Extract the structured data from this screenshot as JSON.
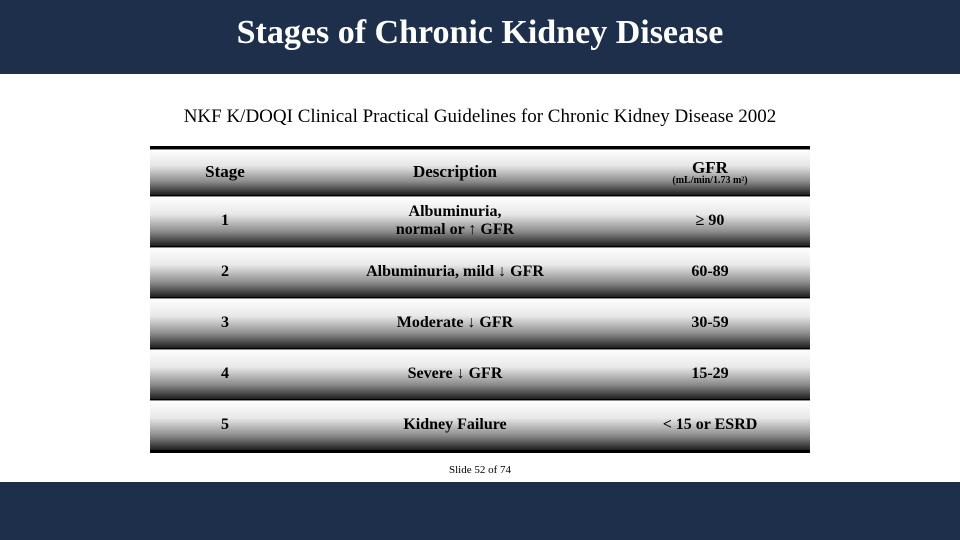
{
  "colors": {
    "band": "#1d2f4b",
    "text": "#000000",
    "title": "#ffffff",
    "row_gradient": [
      "#ffffff",
      "#e8e8e8",
      "#8c8c8c",
      "#1c1c1c"
    ]
  },
  "title": "Stages of Chronic Kidney Disease",
  "subtitle": "NKF K/DOQI Clinical Practical Guidelines for Chronic Kidney Disease 2002",
  "table": {
    "columns": {
      "stage": "Stage",
      "description": "Description",
      "gfr": "GFR",
      "gfr_sub": "(mL/min/1.73 m²)"
    },
    "rows": [
      {
        "stage": "1",
        "desc_line1": "Albuminuria,",
        "desc_line2_pre": "normal or ",
        "desc_line2_arrow": "up",
        "desc_line2_post": " GFR",
        "gfr_pre": "≥ ",
        "gfr_val": "90"
      },
      {
        "stage": "2",
        "desc_single_pre": "Albuminuria, mild ",
        "desc_single_arrow": "down",
        "desc_single_post": " GFR",
        "gfr_val": "60-89"
      },
      {
        "stage": "3",
        "desc_single_pre": "Moderate ",
        "desc_single_arrow": "down",
        "desc_single_post": " GFR",
        "gfr_val": "30-59"
      },
      {
        "stage": "4",
        "desc_single_pre": "Severe ",
        "desc_single_arrow": "down",
        "desc_single_post": " GFR",
        "gfr_val": "15-29"
      },
      {
        "stage": "5",
        "desc_single_pre": "Kidney Failure",
        "desc_single_arrow": "",
        "desc_single_post": "",
        "gfr_val": "< 15 or ESRD"
      }
    ]
  },
  "footer": "Slide 52 of 74"
}
